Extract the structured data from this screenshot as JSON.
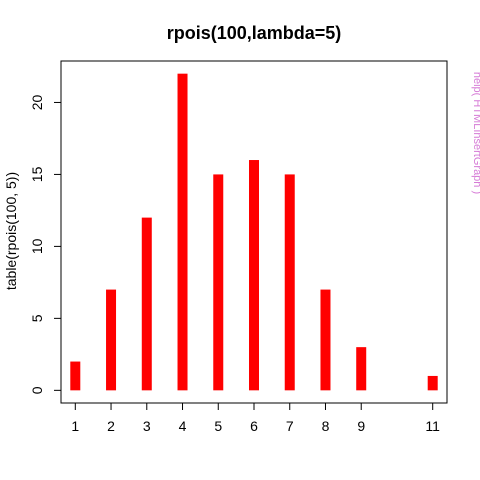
{
  "chart_data": {
    "type": "bar",
    "title": "rpois(100,lambda=5)",
    "xlabel": "",
    "ylabel": "table(rpois(100, 5))",
    "x": [
      1,
      2,
      3,
      4,
      5,
      6,
      7,
      8,
      9,
      11
    ],
    "x_tick_labels": [
      "1",
      "2",
      "3",
      "4",
      "5",
      "6",
      "7",
      "8",
      "9",
      "11"
    ],
    "values": [
      2,
      7,
      12,
      22,
      15,
      16,
      15,
      7,
      3,
      1
    ],
    "y_ticks": [
      0,
      5,
      10,
      15,
      20
    ],
    "xlim": [
      0.6,
      11.4
    ],
    "ylim": [
      -0.88,
      22.88
    ],
    "bar_color": "#ff0000",
    "grid": false,
    "side_note": "help( HTMLInsertGraph )",
    "side_note_color": "#d67bd6"
  }
}
